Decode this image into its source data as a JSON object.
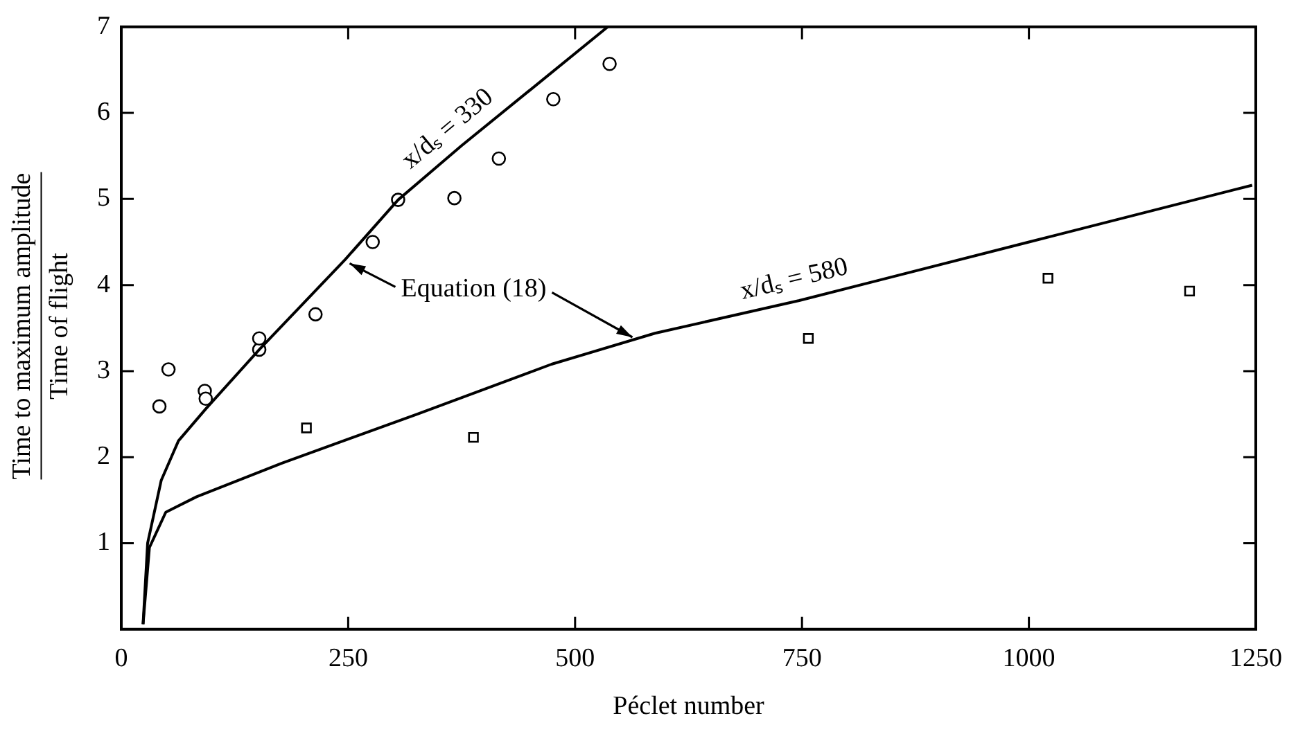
{
  "chart_data": {
    "type": "scatter",
    "xlabel": "Péclet number",
    "ylabel": "Time to maximum amplitude\nTime of flight",
    "xlim": [
      0,
      1250
    ],
    "xticks": [
      0,
      250,
      500,
      750,
      1000,
      1250
    ],
    "ylim": [
      0,
      7
    ],
    "yticks": [
      1,
      2,
      3,
      4,
      5,
      6,
      7
    ],
    "grid": false,
    "legend": false,
    "series": [
      {
        "marker": "circle",
        "color": "#000000",
        "x": [
          42,
          92,
          152,
          305
        ],
        "values": [
          2.59,
          2.77,
          3.25,
          4.99
        ]
      },
      {
        "marker": "circle",
        "color": "#000000",
        "x": [
          52,
          93,
          152,
          214,
          277,
          367,
          416,
          476,
          538
        ],
        "values": [
          3.02,
          2.68,
          3.38,
          3.66,
          4.5,
          5.01,
          5.47,
          6.16,
          6.57
        ]
      },
      {
        "marker": "square",
        "color": "#000000",
        "x": [
          204,
          388,
          757,
          1021,
          1177
        ],
        "values": [
          2.34,
          2.23,
          3.38,
          4.08,
          3.93
        ]
      },
      {
        "type": "line",
        "marker": "none",
        "color": "#000000",
        "x": [
          24,
          29,
          44,
          63,
          93,
          152,
          247,
          305,
          375,
          536
        ],
        "values": [
          0.06,
          1.0,
          1.73,
          2.19,
          2.56,
          3.25,
          4.3,
          4.99,
          5.62,
          7.0
        ]
      },
      {
        "type": "line",
        "marker": "none",
        "color": "#000000",
        "x": [
          24,
          31,
          49,
          83,
          177,
          326,
          474,
          588,
          747,
          1000,
          1246
        ],
        "values": [
          0.06,
          0.95,
          1.36,
          1.54,
          1.93,
          2.5,
          3.08,
          3.44,
          3.82,
          4.5,
          5.16
        ]
      }
    ],
    "annotations": [
      {
        "text": "x/dₛ = 330",
        "x": 375,
        "y": 5.62
      },
      {
        "text": "x/dₛ = 580",
        "x": 747,
        "y": 3.82
      },
      {
        "text": "Equation (18)",
        "x": 247,
        "y": 4.3
      }
    ]
  }
}
